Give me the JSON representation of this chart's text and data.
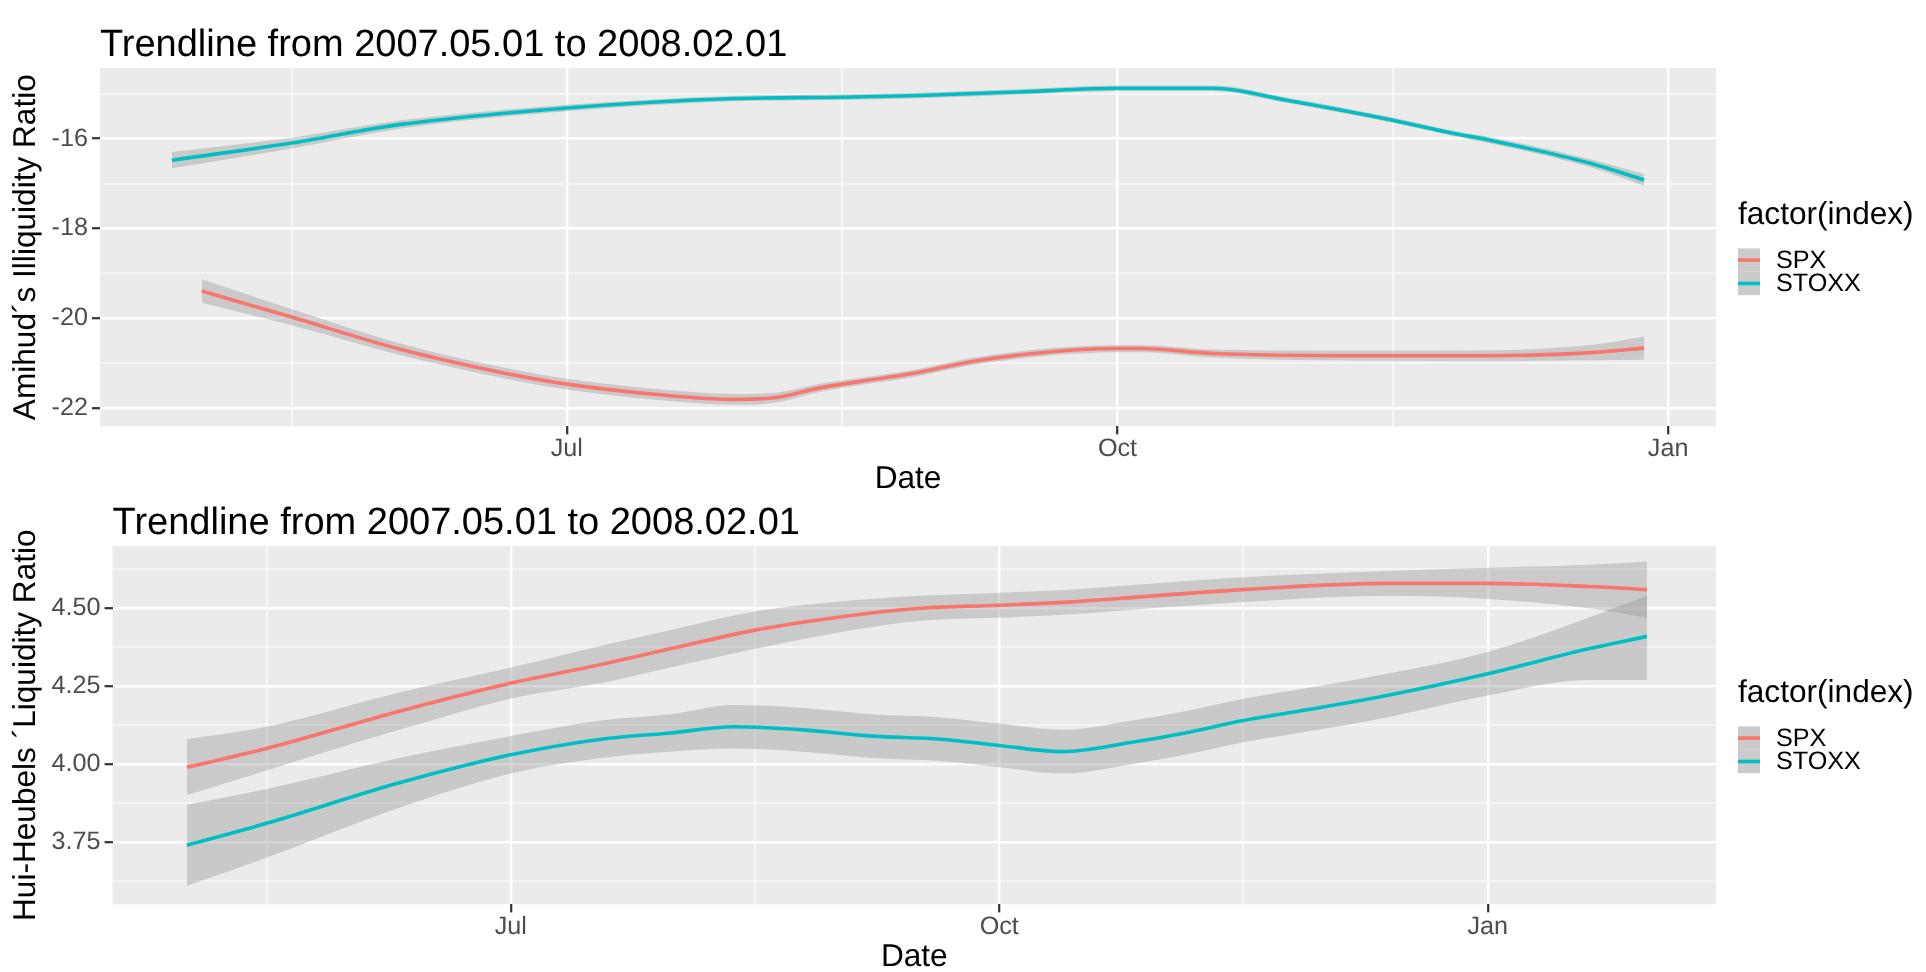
{
  "chart_data": [
    {
      "type": "line",
      "title": "Trendline from 2007.05.01 to 2008.02.01",
      "xlabel": "Date",
      "ylabel": "Amihud´s Illiquidity Ratio",
      "legend_title": "factor(index)",
      "legend": "right",
      "grid": true,
      "xlim": [
        "2007-04-14",
        "2008-01-09"
      ],
      "xticks": [
        {
          "value": "2007-05-16",
          "label": null
        },
        {
          "value": "2007-07-01",
          "label": "Jul"
        },
        {
          "value": "2007-08-16",
          "label": null
        },
        {
          "value": "2007-10-01",
          "label": "Oct"
        },
        {
          "value": "2007-11-16",
          "label": null
        },
        {
          "value": "2008-01-01",
          "label": "Jan"
        }
      ],
      "ylim": [
        -22.4,
        -14.43
      ],
      "yticks": [
        -22,
        {
          "value": -21,
          "label": null
        },
        -20,
        {
          "value": -19,
          "label": null
        },
        -18,
        {
          "value": -17,
          "label": null
        },
        -16,
        {
          "value": -15,
          "label": null
        }
      ],
      "series": [
        {
          "name": "SPX",
          "color": "#f8766d",
          "x": [
            "2007-05-01",
            "2007-05-16",
            "2007-06-03",
            "2007-06-20",
            "2007-07-01",
            "2007-07-16",
            "2007-07-29",
            "2007-08-05",
            "2007-08-12",
            "2007-08-19",
            "2007-08-28",
            "2007-09-07",
            "2007-09-20",
            "2007-10-01",
            "2007-10-05",
            "2007-10-17",
            "2007-11-15",
            "2007-12-02",
            "2007-12-19",
            "2007-12-28"
          ],
          "values": [
            -19.39,
            -19.97,
            -20.68,
            -21.2,
            -21.46,
            -21.69,
            -21.8,
            -21.76,
            -21.55,
            -21.4,
            -21.22,
            -20.95,
            -20.74,
            -20.67,
            -20.67,
            -20.78,
            -20.83,
            -20.83,
            -20.76,
            -20.66
          ],
          "lower": [
            -19.65,
            -20.15,
            -20.81,
            -21.32,
            -21.58,
            -21.81,
            -21.92,
            -21.87,
            -21.64,
            -21.48,
            -21.3,
            -21.03,
            -20.82,
            -20.75,
            -20.75,
            -20.87,
            -20.94,
            -20.95,
            -20.93,
            -20.92
          ],
          "upper": [
            -19.13,
            -19.79,
            -20.55,
            -21.08,
            -21.34,
            -21.57,
            -21.68,
            -21.65,
            -21.46,
            -21.32,
            -21.14,
            -20.87,
            -20.66,
            -20.59,
            -20.59,
            -20.69,
            -20.72,
            -20.71,
            -20.59,
            -20.4
          ]
        },
        {
          "name": "STOXX",
          "color": "#00bfc4",
          "x": [
            "2007-04-26",
            "2007-05-16",
            "2007-06-03",
            "2007-07-01",
            "2007-07-29",
            "2007-08-16",
            "2007-08-29",
            "2007-09-15",
            "2007-10-01",
            "2007-10-17",
            "2007-10-29",
            "2007-11-16",
            "2007-11-26",
            "2007-12-02",
            "2007-12-19",
            "2007-12-28"
          ],
          "values": [
            -16.48,
            -16.1,
            -15.69,
            -15.32,
            -15.11,
            -15.08,
            -15.04,
            -14.96,
            -14.88,
            -14.88,
            -15.14,
            -15.59,
            -15.88,
            -16.03,
            -16.55,
            -16.92
          ],
          "lower": [
            -16.66,
            -16.22,
            -15.78,
            -15.39,
            -15.17,
            -15.14,
            -15.1,
            -15.02,
            -14.94,
            -14.94,
            -15.2,
            -15.65,
            -15.94,
            -16.1,
            -16.64,
            -17.05
          ],
          "upper": [
            -16.3,
            -15.98,
            -15.6,
            -15.25,
            -15.05,
            -15.02,
            -14.98,
            -14.9,
            -14.82,
            -14.82,
            -15.08,
            -15.53,
            -15.82,
            -15.96,
            -16.46,
            -16.79
          ]
        }
      ]
    },
    {
      "type": "line",
      "title": "Trendline from 2007.05.01 to 2008.02.01",
      "xlabel": "Date",
      "ylabel": "Hui-Heubels ´Liquidity Ratio",
      "legend_title": "factor(index)",
      "legend": "right",
      "grid": true,
      "xlim": [
        "2007-04-17",
        "2008-02-13"
      ],
      "xticks": [
        {
          "value": "2007-05-16",
          "label": null
        },
        {
          "value": "2007-07-01",
          "label": "Jul"
        },
        {
          "value": "2007-08-16",
          "label": null
        },
        {
          "value": "2007-10-01",
          "label": "Oct"
        },
        {
          "value": "2007-11-16",
          "label": null
        },
        {
          "value": "2008-01-01",
          "label": "Jan"
        }
      ],
      "ylim": [
        3.55,
        4.7
      ],
      "yticks": [
        {
          "value": 3.625,
          "label": null
        },
        {
          "value": 3.75,
          "label": "3.75"
        },
        {
          "value": 3.875,
          "label": null
        },
        {
          "value": 4,
          "label": "4.00"
        },
        {
          "value": 4.125,
          "label": null
        },
        {
          "value": 4.25,
          "label": "4.25"
        },
        {
          "value": 4.375,
          "label": null
        },
        {
          "value": 4.5,
          "label": "4.50"
        },
        {
          "value": 4.625,
          "label": null
        }
      ],
      "series": [
        {
          "name": "SPX",
          "color": "#f8766d",
          "x": [
            "2007-05-01",
            "2007-05-16",
            "2007-06-10",
            "2007-07-01",
            "2007-07-18",
            "2007-07-31",
            "2007-08-16",
            "2007-08-31",
            "2007-09-16",
            "2007-10-01",
            "2007-10-14",
            "2007-10-30",
            "2007-11-16",
            "2007-12-13",
            "2008-01-01",
            "2008-01-20",
            "2008-01-31"
          ],
          "values": [
            3.99,
            4.05,
            4.17,
            4.26,
            4.32,
            4.37,
            4.43,
            4.47,
            4.5,
            4.51,
            4.52,
            4.54,
            4.56,
            4.58,
            4.58,
            4.57,
            4.56
          ],
          "lower": [
            3.9,
            3.98,
            4.11,
            4.21,
            4.26,
            4.31,
            4.37,
            4.42,
            4.46,
            4.47,
            4.48,
            4.5,
            4.52,
            4.54,
            4.53,
            4.5,
            4.47
          ],
          "upper": [
            4.08,
            4.12,
            4.23,
            4.31,
            4.38,
            4.43,
            4.49,
            4.52,
            4.54,
            4.55,
            4.56,
            4.58,
            4.6,
            4.62,
            4.63,
            4.64,
            4.65
          ]
        },
        {
          "name": "STOXX",
          "color": "#00bfc4",
          "x": [
            "2007-05-01",
            "2007-05-16",
            "2007-06-10",
            "2007-07-01",
            "2007-07-18",
            "2007-07-31",
            "2007-08-12",
            "2007-08-25",
            "2007-09-07",
            "2007-09-20",
            "2007-10-01",
            "2007-10-13",
            "2007-10-26",
            "2007-11-05",
            "2007-11-16",
            "2007-11-30",
            "2007-12-13",
            "2008-01-01",
            "2008-01-20",
            "2008-01-31"
          ],
          "values": [
            3.74,
            3.81,
            3.94,
            4.03,
            4.08,
            4.1,
            4.12,
            4.11,
            4.09,
            4.08,
            4.06,
            4.04,
            4.07,
            4.1,
            4.14,
            4.18,
            4.22,
            4.29,
            4.37,
            4.41
          ],
          "lower": [
            3.61,
            3.7,
            3.86,
            3.97,
            4.02,
            4.04,
            4.05,
            4.04,
            4.02,
            4.01,
            3.99,
            3.97,
            4,
            4.03,
            4.07,
            4.11,
            4.15,
            4.22,
            4.27,
            4.27
          ],
          "upper": [
            3.87,
            3.92,
            4.02,
            4.09,
            4.14,
            4.16,
            4.19,
            4.18,
            4.16,
            4.15,
            4.13,
            4.11,
            4.14,
            4.17,
            4.21,
            4.25,
            4.29,
            4.36,
            4.47,
            4.54
          ]
        }
      ]
    }
  ]
}
